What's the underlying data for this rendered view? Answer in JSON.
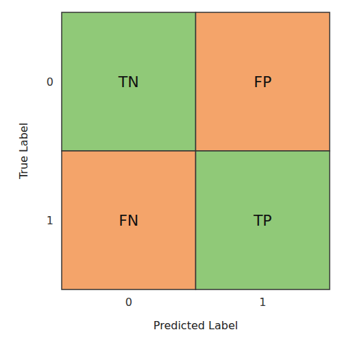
{
  "chart_data": {
    "type": "heatmap",
    "xlabel": "Predicted Label",
    "ylabel": "True Label",
    "x_categories": [
      "0",
      "1"
    ],
    "y_categories": [
      "0",
      "1"
    ],
    "cell_labels": [
      [
        "TN",
        "FP"
      ],
      [
        "FN",
        "TP"
      ]
    ],
    "colors": [
      [
        "#90C978",
        "#F4A46A"
      ],
      [
        "#F4A46A",
        "#90C978"
      ]
    ]
  }
}
